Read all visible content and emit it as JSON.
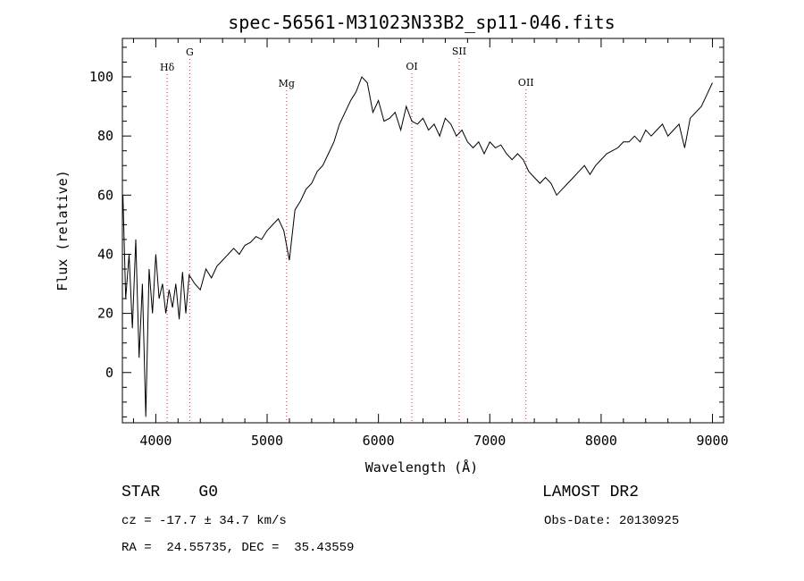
{
  "chart_data": {
    "type": "line",
    "title": "spec-56561-M31023N33B2_sp11-046.fits",
    "xlabel": "Wavelength (Å)",
    "ylabel": "Flux (relative)",
    "xlim": [
      3700,
      9100
    ],
    "ylim": [
      -17,
      113
    ],
    "x_ticks": [
      4000,
      5000,
      6000,
      7000,
      8000,
      9000
    ],
    "y_ticks": [
      0,
      20,
      40,
      60,
      80,
      100
    ],
    "grid": false,
    "line_color": "#000000",
    "marker_color": "#ff2020",
    "series": [
      {
        "x": [
          3705,
          3730,
          3760,
          3790,
          3820,
          3850,
          3880,
          3910,
          3940,
          3970,
          4000,
          4030,
          4060,
          4090,
          4120,
          4150,
          4180,
          4210,
          4240,
          4270,
          4300,
          4350,
          4400,
          4450,
          4500,
          4550,
          4600,
          4650,
          4700,
          4750,
          4800,
          4850,
          4900,
          4950,
          5000,
          5050,
          5100,
          5150,
          5200,
          5250,
          5300,
          5350,
          5400,
          5450,
          5500,
          5550,
          5600,
          5650,
          5700,
          5750,
          5800,
          5850,
          5900,
          5950,
          6000,
          6050,
          6100,
          6150,
          6200,
          6250,
          6300,
          6350,
          6400,
          6450,
          6500,
          6550,
          6600,
          6650,
          6700,
          6750,
          6800,
          6850,
          6900,
          6950,
          7000,
          7050,
          7100,
          7150,
          7200,
          7250,
          7300,
          7350,
          7400,
          7450,
          7500,
          7550,
          7600,
          7650,
          7700,
          7750,
          7800,
          7850,
          7900,
          7950,
          8000,
          8050,
          8100,
          8150,
          8200,
          8250,
          8300,
          8350,
          8400,
          8450,
          8500,
          8550,
          8600,
          8650,
          8700,
          8750,
          8800,
          8850,
          8900,
          8950,
          9000
        ],
        "y": [
          60,
          25,
          40,
          15,
          45,
          5,
          30,
          -15,
          35,
          20,
          40,
          25,
          30,
          20,
          28,
          22,
          30,
          18,
          34,
          20,
          33,
          30,
          28,
          35,
          32,
          36,
          38,
          40,
          42,
          40,
          43,
          44,
          46,
          45,
          48,
          50,
          52,
          48,
          38,
          55,
          58,
          62,
          64,
          68,
          70,
          74,
          78,
          84,
          88,
          92,
          95,
          100,
          98,
          88,
          92,
          85,
          86,
          88,
          82,
          90,
          85,
          84,
          86,
          82,
          84,
          80,
          86,
          84,
          80,
          82,
          78,
          76,
          78,
          74,
          78,
          76,
          77,
          74,
          72,
          74,
          72,
          68,
          66,
          64,
          66,
          64,
          60,
          62,
          64,
          66,
          68,
          70,
          67,
          70,
          72,
          74,
          75,
          76,
          78,
          78,
          80,
          78,
          82,
          80,
          82,
          84,
          80,
          82,
          84,
          76,
          86,
          88,
          90,
          94,
          98
        ]
      }
    ],
    "line_markers": [
      {
        "label": "Hδ",
        "x": 4102
      },
      {
        "label": "G",
        "x": 4305
      },
      {
        "label": "Mg",
        "x": 5175
      },
      {
        "label": "OI",
        "x": 6300
      },
      {
        "label": "SII",
        "x": 6725
      },
      {
        "label": "OII",
        "x": 7325
      }
    ]
  },
  "info": {
    "class": "STAR    G0",
    "survey": "LAMOST DR2",
    "cz": "cz = -17.7 ± 34.7 km/s",
    "obs_date": "Obs-Date: 20130925",
    "coords": "RA =  24.55735, DEC =  35.43559"
  }
}
